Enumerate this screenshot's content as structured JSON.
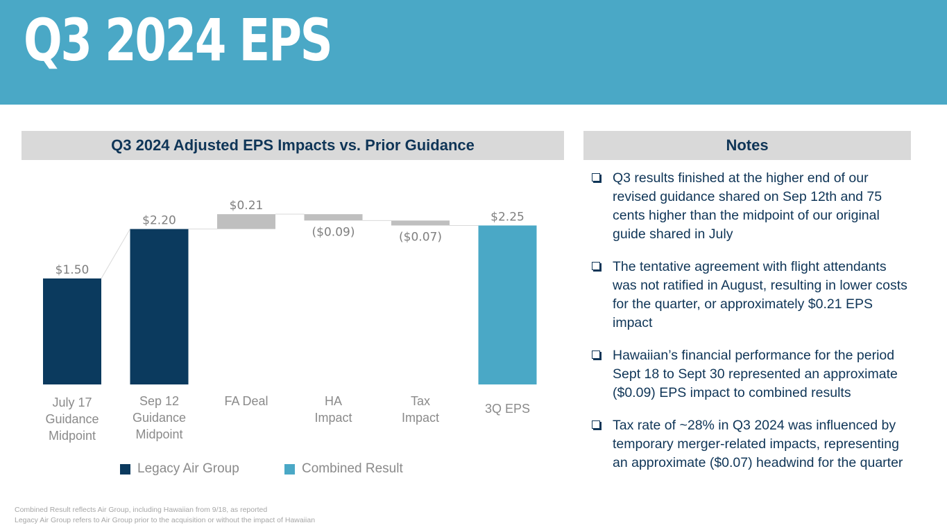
{
  "title": "Q3 2024 EPS",
  "chart_header": "Q3 2024 Adjusted EPS Impacts vs. Prior Guidance",
  "notes_header": "Notes",
  "chart_data": {
    "type": "bar",
    "subtype": "waterfall",
    "categories": [
      "July 17\nGuidance\nMidpoint",
      "Sep 12\nGuidance\nMidpoint",
      "FA Deal",
      "HA\nImpact",
      "Tax\nImpact",
      "3Q EPS"
    ],
    "values": [
      1.5,
      2.2,
      0.21,
      -0.09,
      -0.07,
      2.25
    ],
    "kinds": [
      "total",
      "total",
      "delta",
      "delta",
      "delta",
      "total"
    ],
    "data_labels": [
      "$1.50",
      "$2.20",
      "$0.21",
      "($0.09)",
      "($0.07)",
      "$2.25"
    ],
    "ylim": [
      0,
      2.6
    ],
    "grid": false,
    "legend_position": "bottom",
    "colors": {
      "legacy": "#0b3a5e",
      "combined": "#4aa8c6",
      "delta": "#bfbfbf",
      "connector": "#d9d9d9",
      "label": "#7f7f7f",
      "category": "#8a8a8a"
    },
    "bar_series": [
      "legacy",
      "legacy",
      "delta",
      "delta",
      "delta",
      "combined"
    ]
  },
  "legend": {
    "legacy_label": "Legacy Air Group",
    "combined_label": "Combined Result"
  },
  "notes": [
    "Q3 results finished at the higher end of our revised guidance shared on Sep 12th and 75 cents higher than the midpoint of our original guide shared in July",
    "The tentative agreement with flight attendants was not ratified in August, resulting in lower costs for the quarter, or approximately $0.21 EPS impact",
    "Hawaiian’s financial performance for the period Sept 18 to Sept 30 represented an approximate ($0.09) EPS impact to combined results",
    "Tax rate of ~28% in Q3 2024 was influenced by temporary merger-related impacts, representing an approximate ($0.07) headwind for the quarter"
  ],
  "footnotes": [
    "Combined Result reflects Air Group, including Hawaiian from 9/18, as reported",
    "Legacy Air Group refers to Air Group prior to the acquisition or without the impact of Hawaiian"
  ]
}
